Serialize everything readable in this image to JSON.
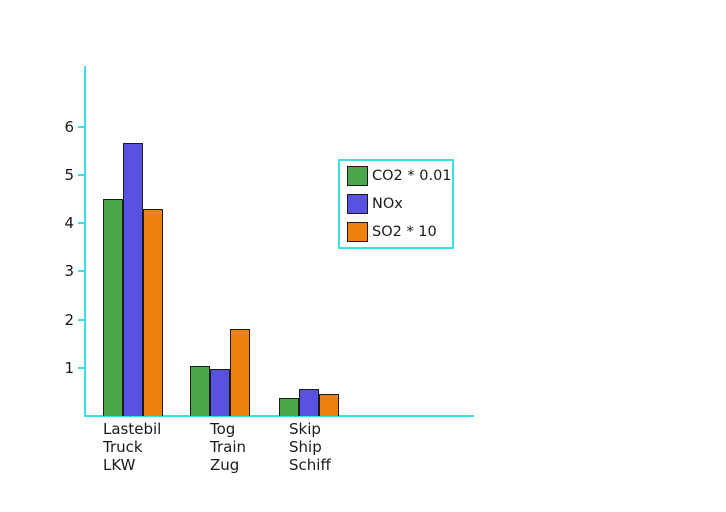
{
  "chart_data": {
    "type": "bar",
    "categories": [
      [
        "Lastebil",
        "Truck",
        "LKW"
      ],
      [
        "Tog",
        "Train",
        "Zug"
      ],
      [
        "Skip",
        "Ship",
        "Schiff"
      ]
    ],
    "series": [
      {
        "name": "CO2 * 0.01",
        "color": "#4CA64C",
        "values": [
          4.5,
          1.04,
          0.38
        ]
      },
      {
        "name": "NOx",
        "color": "#5952E0",
        "values": [
          5.67,
          0.98,
          0.55
        ]
      },
      {
        "name": "SO2 * 10",
        "color": "#EF820D",
        "values": [
          4.3,
          1.81,
          0.46
        ]
      }
    ],
    "yticks": [
      1,
      2,
      3,
      4,
      5,
      6
    ],
    "ylim": [
      0,
      7.25
    ],
    "grid": false,
    "legend": {
      "position": "upper right",
      "entries": [
        "CO2 * 0.01",
        "NOx",
        "SO2 * 10"
      ],
      "border_color": "#3BDDE8",
      "background": "#FFFFFF"
    },
    "axis_color": "#3BDDE8",
    "bar_border_color": "#1A1A1A",
    "text_color": "#1A1A1A"
  }
}
